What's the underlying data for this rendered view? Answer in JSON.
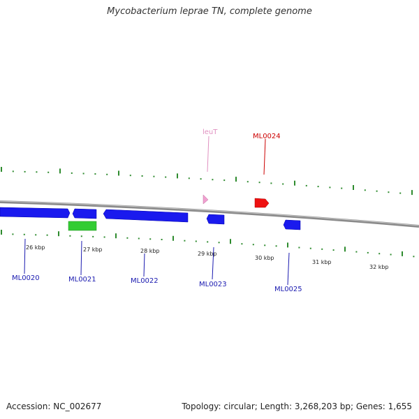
{
  "title": "Mycobacterium leprae TN, complete genome",
  "footer": {
    "accession": "Accession: NC_002677",
    "info": "Topology: circular; Length: 3,268,203 bp; Genes: 1,655"
  },
  "colors": {
    "backbone": "#8a8a8a",
    "ticks": "#2e8b2e",
    "gene_blue": "#1a1aee",
    "gene_red": "#ee1111",
    "gene_green": "#33cc33",
    "gene_pink": "#f0a0d0",
    "label_blue": "#1a1ab0",
    "label_red": "#cc0000",
    "label_pink": "#e090c0"
  },
  "ticks": [
    {
      "label": "26 kbp"
    },
    {
      "label": "27 kbp"
    },
    {
      "label": "28 kbp"
    },
    {
      "label": "29 kbp"
    },
    {
      "label": "30 kbp"
    },
    {
      "label": "31 kbp"
    },
    {
      "label": "32 kbp"
    }
  ],
  "genes": [
    {
      "name": "ML0020",
      "color": "blue"
    },
    {
      "name": "ML0021",
      "color": "blue"
    },
    {
      "name": "ML0022",
      "color": "blue"
    },
    {
      "name": "ML0023",
      "color": "blue"
    },
    {
      "name": "leuT",
      "color": "pink"
    },
    {
      "name": "ML0024",
      "color": "red"
    },
    {
      "name": "ML0025",
      "color": "blue"
    }
  ]
}
